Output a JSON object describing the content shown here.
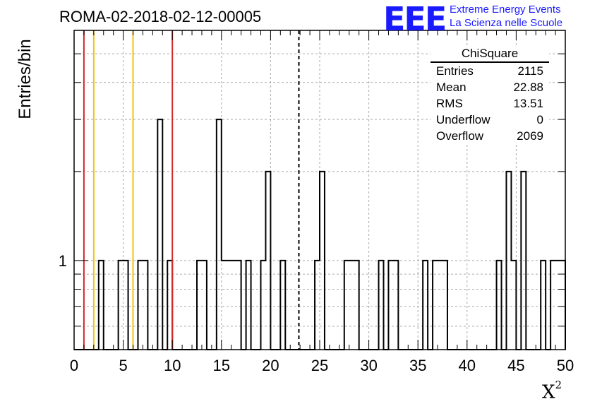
{
  "title": "ROMA-02-2018-02-12-00005",
  "logo": {
    "mark": "EEE",
    "line1": "Extreme Energy Events",
    "line2": "La Scienza nelle Scuole"
  },
  "stats": {
    "title": "ChiSquare",
    "rows": [
      {
        "label": "Entries",
        "value": "2115"
      },
      {
        "label": "Mean",
        "value": "22.88"
      },
      {
        "label": "RMS",
        "value": "13.51"
      },
      {
        "label": "Underflow",
        "value": "0"
      },
      {
        "label": "Overflow",
        "value": "2069"
      }
    ]
  },
  "chart_data": {
    "type": "bar",
    "title": "ROMA-02-2018-02-12-00005",
    "xlabel": "X",
    "xlabel_sup": "2",
    "ylabel": "Entries/bin",
    "xlim": [
      0,
      50
    ],
    "ylim": [
      0.5,
      6
    ],
    "yscale": "log",
    "grid": true,
    "bin_width": 0.5,
    "x_ticks": [
      "0",
      "5",
      "10",
      "15",
      "20",
      "25",
      "30",
      "35",
      "40",
      "45",
      "50"
    ],
    "y_tick_labels": [
      {
        "value": 1,
        "label": "1"
      }
    ],
    "bins": [
      [
        2.5,
        1
      ],
      [
        4.5,
        1
      ],
      [
        5,
        1
      ],
      [
        6.5,
        1
      ],
      [
        7,
        1
      ],
      [
        8.5,
        3
      ],
      [
        9.5,
        1
      ],
      [
        12.5,
        1
      ],
      [
        13,
        1
      ],
      [
        14.5,
        3
      ],
      [
        15,
        1
      ],
      [
        15.5,
        1
      ],
      [
        16,
        1
      ],
      [
        16.5,
        1
      ],
      [
        17.5,
        1
      ],
      [
        19,
        1
      ],
      [
        19.5,
        2
      ],
      [
        21,
        1
      ],
      [
        24.5,
        1
      ],
      [
        25,
        2
      ],
      [
        27.5,
        1
      ],
      [
        28,
        1
      ],
      [
        28.5,
        1
      ],
      [
        31,
        1
      ],
      [
        32,
        1
      ],
      [
        32.5,
        1
      ],
      [
        35.5,
        1
      ],
      [
        36.5,
        1
      ],
      [
        37,
        1
      ],
      [
        37.5,
        1
      ],
      [
        43,
        1
      ],
      [
        44,
        2
      ],
      [
        44.5,
        1
      ],
      [
        45.5,
        2
      ],
      [
        47.5,
        1
      ],
      [
        48.5,
        1
      ],
      [
        49,
        1
      ],
      [
        49.5,
        1
      ]
    ],
    "vertical_lines": [
      {
        "x": 1,
        "color": "#d62728",
        "style": "solid"
      },
      {
        "x": 2,
        "color": "#f2c311",
        "style": "solid"
      },
      {
        "x": 6,
        "color": "#f2c311",
        "style": "solid"
      },
      {
        "x": 10,
        "color": "#d62728",
        "style": "solid"
      },
      {
        "x": 22.88,
        "color": "#000000",
        "style": "dashed"
      }
    ],
    "legend_position": "top-right"
  }
}
